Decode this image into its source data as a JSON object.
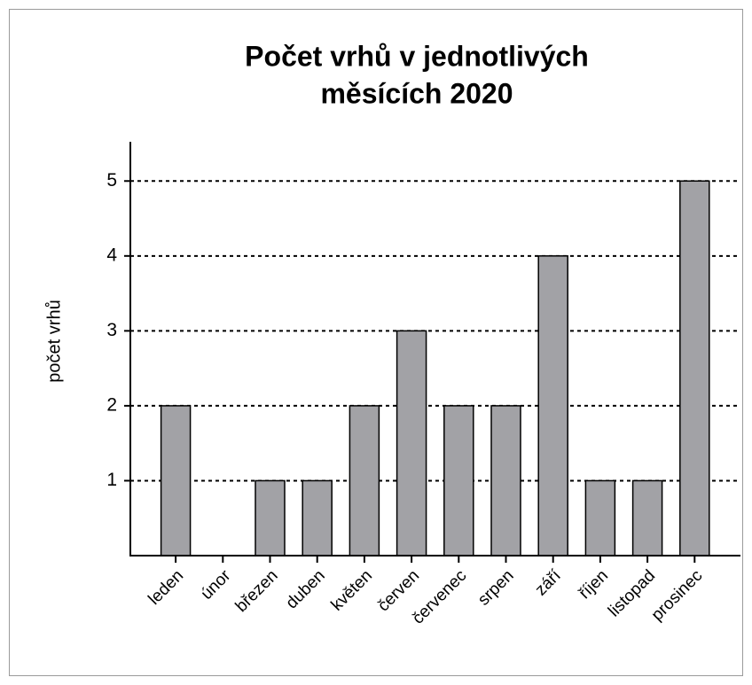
{
  "chart_data": {
    "type": "bar",
    "title": [
      "Počet vrhů v jednotlivých",
      "měsících 2020"
    ],
    "y_label": "počet vrhů",
    "categories": [
      "leden",
      "únor",
      "březen",
      "duben",
      "květen",
      "červen",
      "červenec",
      "srpen",
      "září",
      "říjen",
      "listopad",
      "prosinec"
    ],
    "values": [
      2,
      0,
      1,
      1,
      2,
      3,
      2,
      2,
      4,
      1,
      1,
      5
    ],
    "color": "#a2a2a6",
    "ylim": [
      0,
      5.5
    ],
    "yticks": [
      1,
      2,
      3,
      4,
      5
    ],
    "grid": true
  }
}
